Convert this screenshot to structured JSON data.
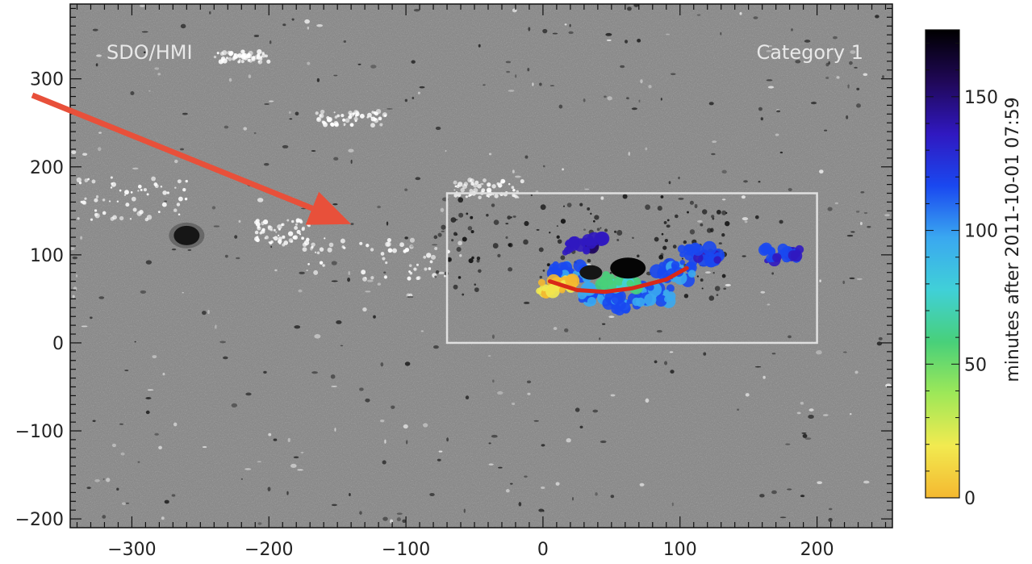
{
  "chart_data": {
    "type": "heatmap",
    "instrument_label": "SDO/HMI",
    "category_label": "Category 1",
    "x_range": [
      -345,
      255
    ],
    "y_range": [
      -210,
      385
    ],
    "x_ticks": [
      -300,
      -200,
      -100,
      0,
      100,
      200
    ],
    "y_ticks": [
      -200,
      -100,
      0,
      100,
      200,
      300
    ],
    "background_color": "#8c8c8c",
    "box": {
      "x0": -70,
      "x1": 200,
      "y0": 0,
      "y1": 170,
      "color": "#e0e0e0"
    },
    "sunspot": {
      "x": -260,
      "y": 122
    },
    "arrow": {
      "from": [
        -350,
        305
      ],
      "to": [
        -140,
        135
      ],
      "color": "#e8503a"
    },
    "colorbar": {
      "label": "minutes after 2011-10-01 07:59",
      "range": [
        0,
        175
      ],
      "ticks": [
        0,
        50,
        100,
        150
      ],
      "colors": [
        "#f4b830",
        "#f2ea50",
        "#9ee858",
        "#48d07a",
        "#40d0d8",
        "#3aa8f0",
        "#1a48f0",
        "#3018c0",
        "#200858",
        "#000000"
      ]
    },
    "flare_ribbons": [
      {
        "x": 20,
        "y": 80,
        "minutes": 110
      },
      {
        "x": 40,
        "y": 55,
        "minutes": 105
      },
      {
        "x": 60,
        "y": 45,
        "minutes": 115
      },
      {
        "x": 80,
        "y": 55,
        "minutes": 105
      },
      {
        "x": 95,
        "y": 80,
        "minutes": 110
      },
      {
        "x": 115,
        "y": 100,
        "minutes": 120
      },
      {
        "x": 175,
        "y": 100,
        "minutes": 125
      },
      {
        "x": 30,
        "y": 110,
        "minutes": 140
      },
      {
        "x": 55,
        "y": 70,
        "minutes": 60
      },
      {
        "x": 10,
        "y": 65,
        "minutes": 10
      }
    ]
  }
}
